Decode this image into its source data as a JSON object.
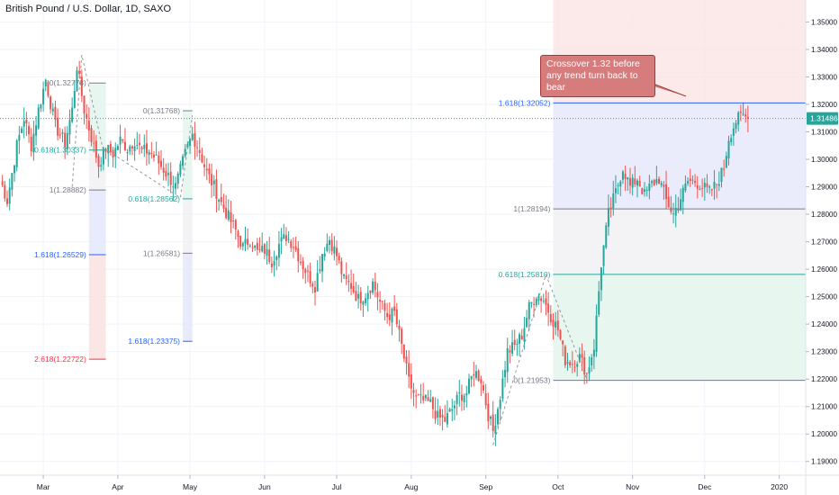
{
  "chart_data": {
    "type": "candlestick",
    "title": "British Pound / U.S. Dollar, 1D, SAXO",
    "symbol_label": "British Pound / U.S. Dollar",
    "interval": "1D",
    "source": "SAXO",
    "xlabel": "",
    "ylabel": "",
    "grid": true,
    "price_axis_side": "right",
    "ylim": [
      1.185,
      1.358
    ],
    "last_price": {
      "label": "1.31486",
      "value": 1.31486,
      "color": "#26a69a"
    },
    "y_ticks": [
      "1.19000",
      "1.20000",
      "1.21000",
      "1.22000",
      "1.23000",
      "1.24000",
      "1.25000",
      "1.26000",
      "1.27000",
      "1.28000",
      "1.29000",
      "1.30000",
      "1.31000",
      "1.32000",
      "1.33000",
      "1.34000",
      "1.35000"
    ],
    "x_ticks": [
      {
        "label": "Mar",
        "day": 28
      },
      {
        "label": "Apr",
        "day": 59
      },
      {
        "label": "May",
        "day": 89
      },
      {
        "label": "Jun",
        "day": 120
      },
      {
        "label": "Jul",
        "day": 150
      },
      {
        "label": "Aug",
        "day": 181
      },
      {
        "label": "Sep",
        "day": 212
      },
      {
        "label": "Oct",
        "day": 242
      },
      {
        "label": "Nov",
        "day": 273
      },
      {
        "label": "Dec",
        "day": 303
      },
      {
        "label": "2020",
        "day": 334
      }
    ],
    "x_range_days": [
      10,
      345
    ],
    "series": [
      {
        "keypoints": [
          [
            10,
            1.293
          ],
          [
            13,
            1.285
          ],
          [
            17,
            1.305
          ],
          [
            20,
            1.315
          ],
          [
            23,
            1.305
          ],
          [
            26,
            1.318
          ],
          [
            29,
            1.329
          ],
          [
            33,
            1.312
          ],
          [
            37,
            1.306
          ],
          [
            40,
            1.318
          ],
          [
            42,
            1.334
          ],
          [
            45,
            1.318
          ],
          [
            48,
            1.308
          ],
          [
            51,
            1.298
          ],
          [
            54,
            1.304
          ],
          [
            57,
            1.302
          ],
          [
            60,
            1.307
          ],
          [
            63,
            1.304
          ],
          [
            66,
            1.307
          ],
          [
            69,
            1.303
          ],
          [
            72,
            1.303
          ],
          [
            75,
            1.3
          ],
          [
            79,
            1.295
          ],
          [
            83,
            1.29
          ],
          [
            87,
            1.302
          ],
          [
            90,
            1.309
          ],
          [
            93,
            1.303
          ],
          [
            96,
            1.295
          ],
          [
            99,
            1.29
          ],
          [
            102,
            1.284
          ],
          [
            105,
            1.279
          ],
          [
            108,
            1.274
          ],
          [
            111,
            1.268
          ],
          [
            114,
            1.271
          ],
          [
            117,
            1.266
          ],
          [
            120,
            1.267
          ],
          [
            123,
            1.263
          ],
          [
            126,
            1.269
          ],
          [
            129,
            1.272
          ],
          [
            132,
            1.269
          ],
          [
            135,
            1.263
          ],
          [
            138,
            1.258
          ],
          [
            141,
            1.254
          ],
          [
            144,
            1.266
          ],
          [
            147,
            1.271
          ],
          [
            150,
            1.265
          ],
          [
            153,
            1.256
          ],
          [
            156,
            1.254
          ],
          [
            159,
            1.249
          ],
          [
            162,
            1.251
          ],
          [
            165,
            1.255
          ],
          [
            168,
            1.248
          ],
          [
            171,
            1.243
          ],
          [
            174,
            1.244
          ],
          [
            177,
            1.232
          ],
          [
            180,
            1.219
          ],
          [
            183,
            1.213
          ],
          [
            186,
            1.212
          ],
          [
            189,
            1.211
          ],
          [
            192,
            1.206
          ],
          [
            195,
            1.205
          ],
          [
            198,
            1.209
          ],
          [
            201,
            1.214
          ],
          [
            204,
            1.215
          ],
          [
            207,
            1.223
          ],
          [
            210,
            1.22
          ],
          [
            213,
            1.207
          ],
          [
            215,
            1.201
          ],
          [
            218,
            1.214
          ],
          [
            221,
            1.23
          ],
          [
            224,
            1.232
          ],
          [
            227,
            1.236
          ],
          [
            230,
            1.246
          ],
          [
            233,
            1.251
          ],
          [
            236,
            1.249
          ],
          [
            239,
            1.243
          ],
          [
            242,
            1.238
          ],
          [
            245,
            1.227
          ],
          [
            248,
            1.226
          ],
          [
            251,
            1.228
          ],
          [
            254,
            1.222
          ],
          [
            257,
            1.232
          ],
          [
            260,
            1.262
          ],
          [
            263,
            1.28
          ],
          [
            266,
            1.288
          ],
          [
            269,
            1.297
          ],
          [
            272,
            1.29
          ],
          [
            275,
            1.293
          ],
          [
            278,
            1.287
          ],
          [
            281,
            1.291
          ],
          [
            284,
            1.293
          ],
          [
            287,
            1.285
          ],
          [
            290,
            1.28
          ],
          [
            293,
            1.286
          ],
          [
            296,
            1.292
          ],
          [
            299,
            1.292
          ],
          [
            302,
            1.29
          ],
          [
            305,
            1.288
          ],
          [
            308,
            1.291
          ],
          [
            311,
            1.297
          ],
          [
            313,
            1.308
          ],
          [
            316,
            1.314
          ],
          [
            319,
            1.316
          ],
          [
            321,
            1.3148
          ]
        ],
        "up_color": "#26a69a",
        "down_color": "#ef5350"
      }
    ],
    "fib_tools": [
      {
        "x_start": 47,
        "x_end": 54,
        "zigzag": [
          [
            40,
            1.29
          ],
          [
            44,
            1.338
          ],
          [
            53,
            1.303
          ]
        ],
        "levels": [
          {
            "label": "0(1.32778)",
            "value": 1.32778,
            "color": "#787b86"
          },
          {
            "label": "0.618(1.30337)",
            "value": 1.30337,
            "color": "#26a69a"
          },
          {
            "label": "1(1.28882)",
            "value": 1.28882,
            "color": "#787b86"
          },
          {
            "label": "1.618(1.26529)",
            "value": 1.26529,
            "color": "#2962ff"
          },
          {
            "label": "2.618(1.22722)",
            "value": 1.22722,
            "color": "#f23645"
          }
        ]
      },
      {
        "x_start": 86,
        "x_end": 90,
        "zigzag": [
          [
            55,
            1.303
          ],
          [
            85,
            1.286
          ],
          [
            90,
            1.316
          ]
        ],
        "levels": [
          {
            "label": "0(1.31768)",
            "value": 1.31768,
            "color": "#787b86"
          },
          {
            "label": "0.618(1.28562)",
            "value": 1.28562,
            "color": "#26a69a"
          },
          {
            "label": "1(1.26581)",
            "value": 1.26581,
            "color": "#787b86"
          },
          {
            "label": "1.618(1.23375)",
            "value": 1.23375,
            "color": "#2962ff"
          }
        ]
      },
      {
        "x_start": 240,
        "x_end": 345,
        "zigzag": [
          [
            215,
            1.196
          ],
          [
            237,
            1.258
          ],
          [
            254,
            1.22
          ]
        ],
        "levels": [
          {
            "label": "1.618(1.32052)",
            "value": 1.32052,
            "color": "#2962ff"
          },
          {
            "label": "1(1.28194)",
            "value": 1.28194,
            "color": "#787b86"
          },
          {
            "label": "0.618(1.25810)",
            "value": 1.2581,
            "color": "#26a69a"
          },
          {
            "label": "0(1.21953)",
            "value": 1.21953,
            "color": "#787b86"
          }
        ]
      }
    ],
    "annotation": "Crossover 1.32 before any trend turn back to bear"
  }
}
